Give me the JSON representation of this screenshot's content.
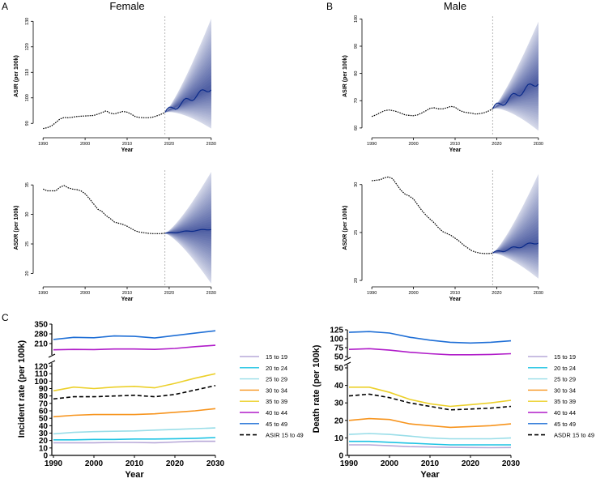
{
  "panel_labels": [
    "A",
    "B",
    "C"
  ],
  "chart_data": [
    {
      "id": "female-asir",
      "type": "line",
      "title": "Female",
      "xlabel": "Year",
      "ylabel": "ASIR (per 100k)",
      "xlim": [
        1989,
        2031
      ],
      "ylim": [
        85,
        132
      ],
      "xticks": [
        1990,
        2000,
        2010,
        2020,
        2030
      ],
      "yticks": [
        90,
        100,
        110,
        120,
        130
      ],
      "projection_start": 2019,
      "observed": {
        "x": [
          1990,
          1991,
          1992,
          1993,
          1994,
          1995,
          1996,
          1997,
          1998,
          1999,
          2000,
          2001,
          2002,
          2003,
          2004,
          2005,
          2006,
          2007,
          2008,
          2009,
          2010,
          2011,
          2012,
          2013,
          2014,
          2015,
          2016,
          2017,
          2018,
          2019
        ],
        "y": [
          88,
          88.3,
          89,
          90.3,
          91.7,
          92.3,
          92.2,
          92.4,
          92.7,
          92.8,
          92.9,
          93,
          93.1,
          93.6,
          94.2,
          94.9,
          94,
          93.7,
          94.2,
          94.7,
          94.4,
          93.6,
          92.6,
          92.3,
          92.2,
          92.2,
          92.4,
          92.9,
          93.5,
          94.3
        ]
      },
      "forecast": {
        "start": 94.3,
        "end": 104,
        "upper_end": 131,
        "lower_end": 88
      }
    },
    {
      "id": "male-asir",
      "type": "line",
      "title": "Male",
      "xlabel": "Year",
      "ylabel": "ASIR (per 100k)",
      "xlim": [
        1989,
        2031
      ],
      "ylim": [
        57,
        101
      ],
      "xticks": [
        1990,
        2000,
        2010,
        2020,
        2030
      ],
      "yticks": [
        60,
        70,
        80,
        90,
        100
      ],
      "projection_start": 2019,
      "observed": {
        "x": [
          1990,
          1991,
          1992,
          1993,
          1994,
          1995,
          1996,
          1997,
          1998,
          1999,
          2000,
          2001,
          2002,
          2003,
          2004,
          2005,
          2006,
          2007,
          2008,
          2009,
          2010,
          2011,
          2012,
          2013,
          2014,
          2015,
          2016,
          2017,
          2018,
          2019
        ],
        "y": [
          64.2,
          64.8,
          65.6,
          66.3,
          66.6,
          66.4,
          66,
          65.4,
          64.8,
          64.6,
          64.5,
          64.8,
          65.5,
          66.3,
          67.2,
          67.4,
          67,
          67,
          67.4,
          67.9,
          67.6,
          66.5,
          65.9,
          65.6,
          65.4,
          65.1,
          65.3,
          65.6,
          66.2,
          67
        ]
      },
      "forecast": {
        "start": 67,
        "end": 77,
        "upper_end": 99,
        "lower_end": 59
      }
    },
    {
      "id": "female-asdr",
      "type": "line",
      "title": "",
      "xlabel": "Year",
      "ylabel": "ASDR (per 100k)",
      "xlim": [
        1989,
        2031
      ],
      "ylim": [
        18,
        37.5
      ],
      "xticks": [
        1990,
        2000,
        2010,
        2020,
        2030
      ],
      "yticks": [
        20,
        25,
        30,
        35
      ],
      "projection_start": 2019,
      "observed": {
        "x": [
          1990,
          1991,
          1992,
          1993,
          1994,
          1995,
          1996,
          1997,
          1998,
          1999,
          2000,
          2001,
          2002,
          2003,
          2004,
          2005,
          2006,
          2007,
          2008,
          2009,
          2010,
          2011,
          2012,
          2013,
          2014,
          2015,
          2016,
          2017,
          2018,
          2019
        ],
        "y": [
          34.3,
          34,
          34,
          34,
          34.6,
          34.9,
          34.5,
          34.3,
          34.2,
          34,
          33.5,
          32.7,
          31.8,
          30.9,
          30.5,
          29.8,
          29.3,
          28.7,
          28.5,
          28.3,
          28,
          27.6,
          27.2,
          27,
          26.9,
          26.8,
          26.75,
          26.75,
          26.75,
          26.8
        ]
      },
      "forecast": {
        "start": 26.8,
        "end": 27.5,
        "upper_end": 37.2,
        "lower_end": 18.3
      }
    },
    {
      "id": "male-asdr",
      "type": "line",
      "title": "",
      "xlabel": "Year",
      "ylabel": "ASDR (per 100k)",
      "xlim": [
        1989,
        2031
      ],
      "ylim": [
        19.5,
        31.5
      ],
      "xticks": [
        1990,
        2000,
        2010,
        2020,
        2030
      ],
      "yticks": [
        20,
        25,
        30
      ],
      "projection_start": 2019,
      "observed": {
        "x": [
          1990,
          1991,
          1992,
          1993,
          1994,
          1995,
          1996,
          1997,
          1998,
          1999,
          2000,
          2001,
          2002,
          2003,
          2004,
          2005,
          2006,
          2007,
          2008,
          2009,
          2010,
          2011,
          2012,
          2013,
          2014,
          2015,
          2016,
          2017,
          2018,
          2019
        ],
        "y": [
          30.4,
          30.45,
          30.5,
          30.7,
          30.8,
          30.6,
          30,
          29.4,
          29,
          28.8,
          28.5,
          27.9,
          27.3,
          26.8,
          26.4,
          26,
          25.5,
          25.1,
          24.9,
          24.7,
          24.4,
          24.1,
          23.7,
          23.4,
          23.1,
          22.95,
          22.85,
          22.8,
          22.8,
          22.85
        ]
      },
      "forecast": {
        "start": 22.85,
        "end": 24,
        "upper_end": 31.1,
        "lower_end": 20.2
      }
    },
    {
      "id": "female-age-incidence",
      "type": "line",
      "title": "",
      "xlabel": "Year",
      "ylabel": "Incident rate (per 100k)",
      "xlim": [
        1990,
        2030
      ],
      "xticks": [
        1990,
        2000,
        2010,
        2020,
        2030
      ],
      "y_break": {
        "lower": {
          "range": [
            0,
            120
          ],
          "ticks": [
            0,
            10,
            20,
            30,
            40,
            50,
            60,
            70,
            80,
            90,
            100,
            110,
            120
          ]
        },
        "upper": {
          "range": [
            140,
            350
          ],
          "ticks": [
            140,
            210,
            280,
            350
          ]
        }
      },
      "x": [
        1990,
        1995,
        2000,
        2005,
        2010,
        2015,
        2020,
        2025,
        2030
      ],
      "series": [
        {
          "name": "15 to 19",
          "color": "#b7a8d8",
          "dashed": false,
          "values": [
            17,
            17,
            17,
            17.5,
            17.5,
            17,
            18,
            19,
            19
          ]
        },
        {
          "name": "20 to 24",
          "color": "#1dc3e3",
          "dashed": false,
          "values": [
            21,
            21,
            21.5,
            21.5,
            22,
            22,
            22.5,
            23,
            24
          ]
        },
        {
          "name": "25 to 29",
          "color": "#98dde8",
          "dashed": false,
          "values": [
            29,
            31,
            32,
            32.5,
            33,
            34,
            35,
            36,
            37
          ]
        },
        {
          "name": "30 to 34",
          "color": "#f7941d",
          "dashed": false,
          "values": [
            52,
            54,
            55,
            55,
            55,
            56,
            58,
            60,
            63
          ]
        },
        {
          "name": "35 to 39",
          "color": "#ecd02a",
          "dashed": false,
          "values": [
            87,
            92,
            90,
            92,
            93,
            91,
            97,
            104,
            110
          ]
        },
        {
          "name": "40 to 44",
          "color": "#b01cc9",
          "dashed": false,
          "values": [
            165,
            168,
            167,
            171,
            171,
            168,
            175,
            188,
            198
          ]
        },
        {
          "name": "45 to 49",
          "color": "#1f6fd6",
          "dashed": false,
          "values": [
            240,
            255,
            252,
            265,
            262,
            250,
            268,
            285,
            302
          ]
        },
        {
          "name": "ASIR 15 to 49",
          "color": "#000000",
          "dashed": true,
          "values": [
            76,
            79,
            79,
            80,
            81,
            79,
            82,
            88,
            94
          ]
        }
      ]
    },
    {
      "id": "male-age-death",
      "type": "line",
      "title": "",
      "xlabel": "Year",
      "ylabel": "Death rate (per 100k)",
      "xlim": [
        1990,
        2030
      ],
      "xticks": [
        1990,
        2000,
        2010,
        2020,
        2030
      ],
      "y_break": {
        "lower": {
          "range": [
            0,
            50
          ],
          "ticks": [
            0,
            10,
            20,
            30,
            40,
            50
          ]
        },
        "upper": {
          "range": [
            50,
            125
          ],
          "ticks": [
            50,
            75,
            100,
            125
          ]
        }
      },
      "x": [
        1990,
        1995,
        2000,
        2005,
        2010,
        2015,
        2020,
        2025,
        2030
      ],
      "series": [
        {
          "name": "15 to 19",
          "color": "#b7a8d8",
          "dashed": false,
          "values": [
            6,
            6,
            5.5,
            5,
            4.8,
            4.6,
            4.5,
            4.4,
            4.5
          ]
        },
        {
          "name": "20 to 24",
          "color": "#1dc3e3",
          "dashed": false,
          "values": [
            8,
            8,
            7.5,
            7,
            6.5,
            6,
            6,
            6,
            6
          ]
        },
        {
          "name": "25 to 29",
          "color": "#98dde8",
          "dashed": false,
          "values": [
            12,
            12.5,
            12,
            11,
            10,
            9.5,
            9.5,
            9.5,
            10
          ]
        },
        {
          "name": "30 to 34",
          "color": "#f7941d",
          "dashed": false,
          "values": [
            20,
            21,
            20.5,
            18,
            17,
            16,
            16.5,
            17,
            18
          ]
        },
        {
          "name": "35 to 39",
          "color": "#ecd02a",
          "dashed": false,
          "values": [
            39,
            39,
            36,
            32,
            29.5,
            28,
            29,
            30,
            31.5
          ]
        },
        {
          "name": "40 to 44",
          "color": "#b01cc9",
          "dashed": false,
          "values": [
            70,
            72,
            68,
            62,
            58,
            55,
            55,
            56,
            58
          ]
        },
        {
          "name": "45 to 49",
          "color": "#1f6fd6",
          "dashed": false,
          "values": [
            118,
            120,
            116,
            104,
            96,
            90,
            88,
            90,
            94
          ]
        },
        {
          "name": "ASDR 15 to 49",
          "color": "#000000",
          "dashed": true,
          "values": [
            34,
            35,
            33,
            30,
            28,
            26,
            26.5,
            27,
            28
          ]
        }
      ]
    }
  ]
}
